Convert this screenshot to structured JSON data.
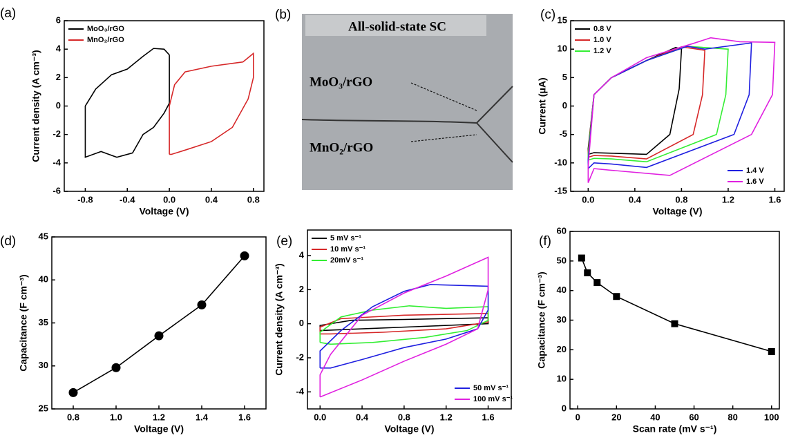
{
  "chart_data": [
    {
      "type": "line",
      "label": "(a)",
      "x_label": "Voltage (V)",
      "y_label": "Current density (A cm⁻³)",
      "xlim": [
        -1.0,
        0.9
      ],
      "ylim": [
        -6,
        6
      ],
      "xticks": [
        -0.8,
        -0.4,
        {
          "value": 0,
          "label": "0.0"
        },
        0.4,
        0.8
      ],
      "yticks": [
        -6,
        -4,
        -2,
        0,
        2,
        4,
        6
      ],
      "series": [
        {
          "name": "MoO₃/rGO",
          "color": "#000000",
          "legend": "upper left",
          "x": [
            0,
            -0.05,
            -0.15,
            -0.25,
            -0.4,
            -0.55,
            -0.7,
            -0.8,
            -0.8,
            -0.65,
            -0.5,
            -0.35,
            -0.25,
            -0.15,
            -0.05,
            0,
            0
          ],
          "values": [
            3.6,
            4.0,
            4.05,
            3.5,
            2.6,
            2.2,
            1.2,
            0,
            -3.6,
            -3.2,
            -3.6,
            -3.3,
            -2.0,
            -1.5,
            -0.5,
            0.2,
            3.6
          ]
        },
        {
          "name": "MnO₂/rGO",
          "color": "#d62728",
          "legend": "upper left",
          "x": [
            0,
            0,
            0.05,
            0.15,
            0.4,
            0.7,
            0.8,
            0.8,
            0.75,
            0.6,
            0.4,
            0.15,
            0.02,
            0
          ],
          "values": [
            -3.4,
            0,
            1.5,
            2.4,
            2.8,
            3.1,
            3.7,
            2.0,
            0.5,
            -1.5,
            -2.5,
            -3.1,
            -3.4,
            -3.4
          ]
        }
      ]
    },
    {
      "type": "image",
      "label": "(b)",
      "title": "All-solid-state SC",
      "annotations": [
        "MoO₃/rGO",
        "MnO₂/rGO"
      ]
    },
    {
      "type": "line",
      "label": "(c)",
      "x_label": "Voltage (V)",
      "y_label": "Current (μA)",
      "xlim": [
        -0.15,
        1.68
      ],
      "ylim": [
        -15,
        15
      ],
      "xticks": [
        {
          "value": 0,
          "label": "0.0"
        },
        0.4,
        0.8,
        1.2,
        1.6
      ],
      "yticks": [
        -15,
        -10,
        -5,
        0,
        5,
        10,
        15
      ],
      "series": [
        {
          "name": "0.8 V",
          "color": "#000000",
          "legend": "upper left",
          "x": [
            0,
            0,
            0.05,
            0.2,
            0.5,
            0.75,
            0.8,
            0.78,
            0.7,
            0.5,
            0.2,
            0.05,
            0
          ],
          "values": [
            -8.5,
            -7.5,
            2,
            5,
            8,
            10.3,
            10,
            3,
            -5,
            -8.5,
            -8.3,
            -8.2,
            -8.5
          ]
        },
        {
          "name": "1.0 V",
          "color": "#d62728",
          "legend": "upper left",
          "x": [
            0,
            0,
            0.05,
            0.2,
            0.5,
            0.8,
            1.0,
            0.98,
            0.9,
            0.5,
            0.2,
            0.05,
            0
          ],
          "values": [
            -9,
            -8,
            2,
            5,
            8,
            10.4,
            9.8,
            2,
            -5,
            -9.3,
            -8.8,
            -8.7,
            -9
          ]
        },
        {
          "name": "1.2 V",
          "color": "#33ee33",
          "legend": "upper left",
          "x": [
            0,
            0,
            0.05,
            0.2,
            0.5,
            0.85,
            1.2,
            1.18,
            1.1,
            0.5,
            0.2,
            0.05,
            0
          ],
          "values": [
            -9.5,
            -8.5,
            2,
            5,
            8,
            10.5,
            10,
            2,
            -5,
            -9.8,
            -9.3,
            -9.2,
            -9.5
          ]
        },
        {
          "name": "1.4 V",
          "color": "#1f1fe0",
          "legend": "lower right",
          "x": [
            0,
            0,
            0.05,
            0.2,
            0.5,
            0.85,
            1.0,
            1.4,
            1.38,
            1.25,
            0.5,
            0.2,
            0.05,
            0
          ],
          "values": [
            -11,
            -9.5,
            2,
            5,
            8,
            10.5,
            10,
            11.1,
            2,
            -5,
            -10.8,
            -10.2,
            -10,
            -11
          ]
        },
        {
          "name": "1.6 V",
          "color": "#e020e0",
          "legend": "lower right",
          "x": [
            0,
            0,
            0.05,
            0.2,
            0.5,
            0.9,
            1.05,
            1.3,
            1.6,
            1.58,
            1.4,
            0.7,
            0.2,
            0.05,
            0
          ],
          "values": [
            -13.5,
            -10.5,
            2,
            5,
            8.5,
            11,
            12,
            11.3,
            11.2,
            2,
            -5,
            -12.2,
            -11.3,
            -11,
            -13.5
          ]
        }
      ]
    },
    {
      "type": "line",
      "label": "(d)",
      "x_label": "Voltage (V)",
      "y_label": "Capacitance (F cm⁻³)",
      "marker": "circle",
      "color": "#000000",
      "xlim": [
        0.7,
        1.7
      ],
      "ylim": [
        25,
        45
      ],
      "xticks": [
        0.8,
        {
          "value": 1,
          "label": "1.0"
        },
        1.2,
        1.4,
        1.6
      ],
      "yticks": [
        25,
        30,
        35,
        40,
        45
      ],
      "x": [
        0.8,
        1.0,
        1.2,
        1.4,
        1.6
      ],
      "values": [
        26.9,
        29.8,
        33.5,
        37.1,
        42.8
      ]
    },
    {
      "type": "line",
      "label": "(e)",
      "x_label": "Voltage (V)",
      "y_label": "Current density (A cm⁻³)",
      "xlim": [
        -0.12,
        1.82
      ],
      "ylim": [
        -5,
        5.5
      ],
      "xticks": [
        {
          "value": 0,
          "label": "0.0"
        },
        0.4,
        0.8,
        1.2,
        1.6
      ],
      "yticks": [
        -4,
        -2,
        0,
        2,
        4
      ],
      "series": [
        {
          "name": "5 mV s⁻¹",
          "color": "#000000",
          "legend": "upper left",
          "x": [
            0,
            0,
            0.3,
            0.8,
            1.6,
            1.6,
            1.0,
            0.4,
            0
          ],
          "values": [
            -0.4,
            -0.1,
            0.2,
            0.25,
            0.35,
            0,
            -0.15,
            -0.3,
            -0.4
          ]
        },
        {
          "name": "10 mV s⁻¹",
          "color": "#d62728",
          "legend": "upper left",
          "x": [
            0,
            0,
            0.2,
            0.8,
            1.6,
            1.6,
            1.2,
            0.6,
            0.1,
            0
          ],
          "values": [
            -0.6,
            -0.2,
            0.3,
            0.5,
            0.6,
            0.1,
            -0.3,
            -0.5,
            -0.6,
            -0.6
          ]
        },
        {
          "name": "20mV s⁻¹",
          "color": "#33ee33",
          "legend": "upper left",
          "x": [
            0,
            0,
            0.2,
            0.5,
            0.85,
            1.2,
            1.6,
            1.6,
            1.4,
            1.0,
            0.5,
            0.1,
            0
          ],
          "values": [
            -1.1,
            -0.5,
            0.4,
            0.8,
            1.05,
            0.9,
            1.0,
            0.2,
            -0.4,
            -0.8,
            -1.1,
            -1.2,
            -1.1
          ]
        },
        {
          "name": "50 mV s⁻¹",
          "color": "#1f1fe0",
          "legend": "lower right",
          "x": [
            0,
            0,
            0.2,
            0.5,
            0.8,
            1.05,
            1.6,
            1.6,
            1.5,
            1.2,
            0.8,
            0.4,
            0.1,
            0
          ],
          "values": [
            -2.6,
            -1.6,
            -0.4,
            1.0,
            1.9,
            2.3,
            2.2,
            0.8,
            -0.3,
            -0.9,
            -1.4,
            -2.1,
            -2.6,
            -2.6
          ]
        },
        {
          "name": "100 mV s⁻¹",
          "color": "#e020e0",
          "legend": "lower right",
          "x": [
            0,
            0,
            0.1,
            0.4,
            0.8,
            1.2,
            1.6,
            1.6,
            1.5,
            1.2,
            0.8,
            0.4,
            0
          ],
          "values": [
            -4.3,
            -3.0,
            -1.8,
            0.5,
            1.8,
            2.8,
            3.9,
            2.0,
            -0.3,
            -1.2,
            -2.2,
            -3.3,
            -4.3
          ]
        }
      ]
    },
    {
      "type": "line",
      "label": "(f)",
      "x_label": "Scan rate (mV s⁻¹)",
      "y_label": "Capacitance (F cm⁻³)",
      "marker": "square",
      "color": "#000000",
      "xlim": [
        -4,
        104
      ],
      "ylim": [
        0,
        60
      ],
      "xticks": [
        0,
        20,
        40,
        60,
        80,
        100
      ],
      "yticks": [
        0,
        10,
        20,
        30,
        40,
        50,
        60
      ],
      "x": [
        2,
        5,
        10,
        20,
        50,
        100
      ],
      "values": [
        51,
        46,
        42.7,
        38,
        28.8,
        19.4
      ]
    }
  ]
}
